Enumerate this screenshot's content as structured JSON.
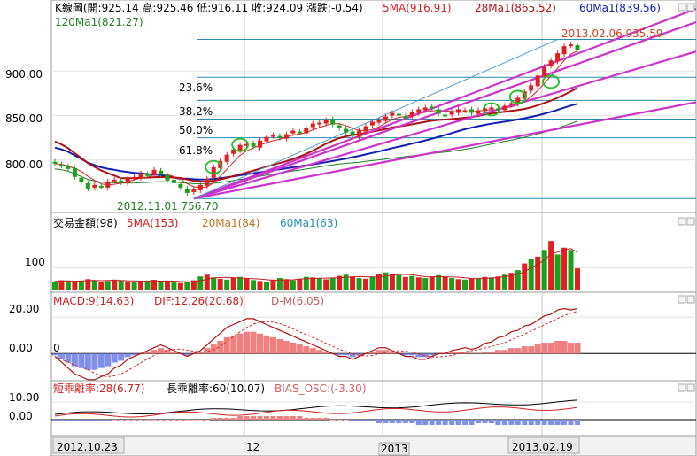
{
  "header": {
    "kline": "K線圖(開:925.14 高:925.46 低:916.11 收:924.09 漲跌:-0.54)",
    "ma5": "5MA(916.91)",
    "ma28": "28Ma1(865.52)",
    "ma60": "60Ma1(839.56)",
    "ma120": "120Ma1(821.27)"
  },
  "volume_header": {
    "title": "交易金額(98)",
    "ma5": "5MA(153)",
    "ma20": "20Ma1(84)",
    "ma60": "60Ma1(63)"
  },
  "macd_header": {
    "macd": "MACD:9(14.63)",
    "dif": "DIF:12,26(20.68)",
    "dm": "D-M(6.05)"
  },
  "bias_header": {
    "short": "短乖離率:28(6.77)",
    "long": "長乖離率:60(10.07)",
    "osc": "BIAS_OSC:(-3.30)"
  },
  "annotations": {
    "high": "2013.02.06  935.59",
    "low": "2012.11.01  756.70",
    "fib_236": "23.6%",
    "fib_382": "38.2%",
    "fib_500": "50.0%",
    "fib_618": "61.8%",
    "zero_marker": "0"
  },
  "colors": {
    "up": "#e02020",
    "down": "#1aa01a",
    "ma5": "#d02020",
    "ma28": "#b01010",
    "ma60": "#1020b0",
    "ma120": "#208020",
    "trendline": "#cc33cc",
    "fib": "#2a8cb0",
    "macd_hist": "#f08080",
    "macd_neg": "#8090e8"
  },
  "chart_data": [
    {
      "type": "candlestick",
      "name": "price",
      "x_ticks": [
        "2012.10.23",
        "12",
        "2013",
        "2013.02.19"
      ],
      "y_ticks": [
        "900.00",
        "850.00",
        "800.00"
      ],
      "ylim": [
        745,
        960
      ],
      "fibonacci": {
        "23.6%": 893,
        "38.2%": 867,
        "50.0%": 846,
        "61.8%": 825
      },
      "close": [
        796,
        794,
        790,
        781,
        775,
        768,
        772,
        770,
        776,
        778,
        775,
        779,
        781,
        785,
        783,
        789,
        784,
        777,
        774,
        769,
        763,
        767,
        772,
        779,
        792,
        799,
        806,
        812,
        817,
        818,
        815,
        822,
        826,
        828,
        825,
        829,
        833,
        831,
        836,
        841,
        842,
        845,
        840,
        836,
        831,
        827,
        833,
        838,
        843,
        845,
        849,
        853,
        850,
        848,
        854,
        857,
        859,
        858,
        852,
        850,
        854,
        857,
        856,
        853,
        856,
        858,
        859,
        857,
        861,
        864,
        870,
        877,
        884,
        895,
        905,
        912,
        920,
        928,
        930,
        924
      ]
    },
    {
      "type": "bar",
      "name": "volume",
      "y_ticks": [
        "100"
      ],
      "ylim": [
        0,
        260
      ],
      "values": [
        40,
        45,
        42,
        38,
        44,
        50,
        46,
        39,
        42,
        48,
        45,
        40,
        38,
        36,
        44,
        47,
        42,
        39,
        35,
        33,
        40,
        45,
        62,
        70,
        58,
        52,
        48,
        55,
        60,
        52,
        46,
        42,
        39,
        48,
        55,
        50,
        45,
        52,
        60,
        58,
        54,
        49,
        56,
        65,
        70,
        62,
        55,
        52,
        60,
        72,
        80,
        75,
        68,
        60,
        64,
        58,
        55,
        62,
        68,
        60,
        55,
        50,
        48,
        52,
        55,
        60,
        58,
        62,
        70,
        78,
        90,
        120,
        140,
        150,
        180,
        220,
        160,
        190,
        180,
        98
      ]
    },
    {
      "type": "bar",
      "name": "macd",
      "y_ticks": [
        "20.00",
        "0.00"
      ],
      "ylim": [
        -14,
        26
      ],
      "values": [
        -1,
        -3,
        -5,
        -7,
        -8,
        -9,
        -9,
        -8,
        -7,
        -5,
        -4,
        -2,
        -1,
        0,
        1,
        2,
        3,
        2,
        1,
        0,
        -1,
        0,
        1,
        3,
        5,
        7,
        9,
        10,
        11,
        12,
        12,
        11,
        10,
        9,
        8,
        7,
        6,
        5,
        4,
        3,
        2,
        1,
        0,
        -1,
        -1,
        -2,
        -1,
        0,
        1,
        2,
        2,
        1,
        0,
        -1,
        -1,
        -2,
        -2,
        -1,
        0,
        0,
        1,
        1,
        1,
        0,
        0,
        1,
        1,
        2,
        2,
        3,
        3,
        4,
        4,
        5,
        6,
        6,
        7,
        7,
        6,
        6
      ]
    },
    {
      "type": "bar",
      "name": "bias_osc",
      "y_ticks": [
        "10.00",
        "0.00"
      ],
      "ylim": [
        -8,
        14
      ],
      "values": [
        -1,
        -1,
        -1,
        -1,
        -1,
        -1,
        -1,
        -1,
        -1,
        0,
        0,
        0,
        0,
        0,
        0,
        0,
        0,
        0,
        0,
        0,
        0,
        0,
        0,
        0,
        1,
        1,
        1,
        1,
        2,
        2,
        2,
        2,
        2,
        2,
        2,
        2,
        2,
        2,
        1,
        1,
        1,
        1,
        0,
        0,
        0,
        -1,
        -1,
        -1,
        -1,
        -2,
        -2,
        -2,
        -2,
        -2,
        -2,
        -3,
        -3,
        -3,
        -3,
        -3,
        -3,
        -3,
        -3,
        -3,
        -2,
        -2,
        -2,
        -3,
        -3,
        -3,
        -3,
        -3,
        -3,
        -3,
        -3,
        -3,
        -3,
        -3,
        -3,
        -3
      ]
    }
  ]
}
